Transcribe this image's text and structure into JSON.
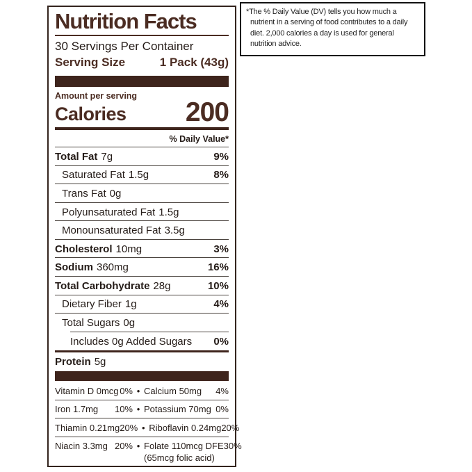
{
  "theme": {
    "background": "#ffffff",
    "brown": "#4B2C22",
    "bar": "#3E241C",
    "text": "#241B17",
    "rule": "#4A433E",
    "label-border": "#33241D",
    "footnote-border": "#111111",
    "footnote-text": "#222222"
  },
  "label": {
    "title": "Nutrition Facts",
    "servings_per_container": "30 Servings Per Container",
    "serving_size_label": "Serving Size",
    "serving_size_value": "1 Pack (43g)",
    "amount_per_serving": "Amount per serving",
    "calories_label": "Calories",
    "calories_value": "200",
    "daily_value_header": "% Daily Value*",
    "rows": [
      {
        "name": "Total Fat",
        "amount": "7g",
        "dv": "9%"
      },
      {
        "name": "Saturated Fat",
        "amount": "1.5g",
        "dv": "8%"
      },
      {
        "name": "Trans Fat",
        "amount": "0g",
        "dv": ""
      },
      {
        "name": "Polyunsaturated Fat",
        "amount": "1.5g",
        "dv": ""
      },
      {
        "name": "Monounsaturated Fat",
        "amount": "3.5g",
        "dv": ""
      },
      {
        "name": "Cholesterol",
        "amount": "10mg",
        "dv": "3%"
      },
      {
        "name": "Sodium",
        "amount": "360mg",
        "dv": "16%"
      },
      {
        "name": "Total Carbohydrate",
        "amount": "28g",
        "dv": "10%"
      },
      {
        "name": "Dietary Fiber",
        "amount": "1g",
        "dv": "4%"
      },
      {
        "name": "Total Sugars",
        "amount": "0g",
        "dv": ""
      },
      {
        "name": "Includes 0g Added Sugars",
        "amount": "",
        "dv": "0%"
      },
      {
        "name": "Protein",
        "amount": "5g",
        "dv": ""
      }
    ],
    "vitamins": {
      "bullet": "•",
      "rows": [
        {
          "left_name": "Vitamin D 0mcg",
          "left_dv": "0%",
          "right_name": "Calcium 50mg",
          "right_dv": "4%"
        },
        {
          "left_name": "Iron 1.7mg",
          "left_dv": "10%",
          "right_name": "Potassium 70mg",
          "right_dv": "0%"
        },
        {
          "left_name": "Thiamin 0.21mg",
          "left_dv": "20%",
          "right_name": "Riboflavin 0.24mg",
          "right_dv": "20%"
        },
        {
          "left_name": "Niacin 3.3mg",
          "left_dv": "20%",
          "right_name": "Folate 110mcg DFE",
          "right_dv": "30%",
          "right_note": "(65mcg folic acid)"
        }
      ]
    }
  },
  "footnote": {
    "text": "*The % Daily Value (DV) tells you how much a nutrient in a serving of food contributes to a daily diet. 2,000 calories a day is used for general nutrition advice."
  }
}
